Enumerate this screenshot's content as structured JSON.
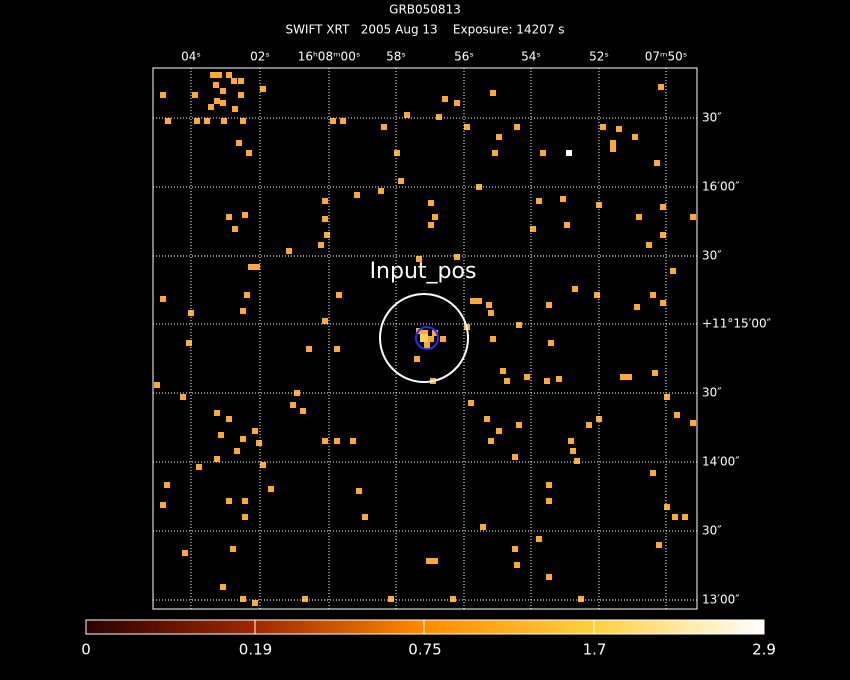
{
  "header": {
    "title": "GRB050813",
    "subtitle": "SWIFT XRT   2005 Aug 13    Exposure: 14207 s"
  },
  "ra_labels": [
    "04ˢ",
    "02ˢ",
    "16ʰ08ᵐ00ˢ",
    "58ˢ",
    "56ˢ",
    "54ˢ",
    "52ˢ",
    "07ᵐ50ˢ"
  ],
  "dec_labels": [
    "30″",
    "16′00″",
    "30″",
    "+11°15′00″",
    "30″",
    "14′00″",
    "30″",
    "13′00″"
  ],
  "annotation": "Input_pos",
  "colorbar": {
    "ticks": [
      0,
      0.19,
      0.75,
      1.7,
      2.9
    ]
  }
}
